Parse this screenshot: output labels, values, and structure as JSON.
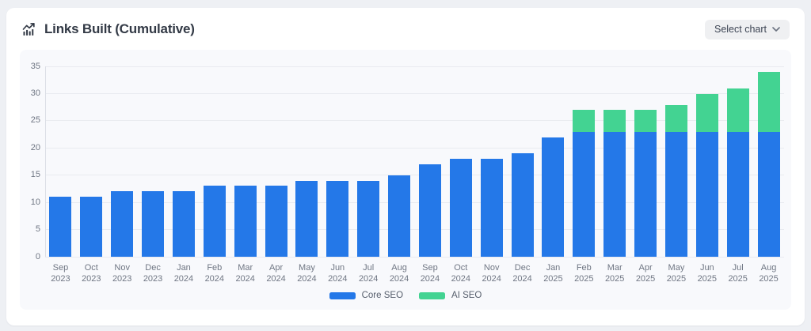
{
  "header": {
    "title": "Links Built (Cumulative)",
    "select_chart_label": "Select chart",
    "chevron_icon": "chevron-down"
  },
  "colors": {
    "core_seo": "#2478e8",
    "ai_seo": "#43d392",
    "page_background": "#eef0f4",
    "card_background": "#ffffff",
    "panel_background": "#f8f9fc",
    "gridline": "#e9ebf0",
    "axis_line": "#dcdfe6",
    "tick_text": "#6f7683",
    "title_text": "#333a46"
  },
  "chart_data": {
    "type": "bar",
    "stacked": true,
    "title": "Links Built (Cumulative)",
    "xlabel": "",
    "ylabel": "",
    "ylim": [
      0,
      35
    ],
    "yticks": [
      0,
      5,
      10,
      15,
      20,
      25,
      30,
      35
    ],
    "grid": true,
    "legend_position": "bottom",
    "categories": [
      "Sep 2023",
      "Oct 2023",
      "Nov 2023",
      "Dec 2023",
      "Jan 2024",
      "Feb 2024",
      "Mar 2024",
      "Apr 2024",
      "May 2024",
      "Jun 2024",
      "Jul 2024",
      "Aug 2024",
      "Sep 2024",
      "Oct 2024",
      "Nov 2024",
      "Dec 2024",
      "Jan 2025",
      "Feb 2025",
      "Mar 2025",
      "Apr 2025",
      "May 2025",
      "Jun 2025",
      "Jul 2025",
      "Aug 2025"
    ],
    "series": [
      {
        "name": "Core SEO",
        "color": "#2478e8",
        "values": [
          11,
          11,
          12,
          12,
          12,
          13,
          13,
          13,
          14,
          14,
          14,
          15,
          17,
          18,
          18,
          19,
          22,
          23,
          23,
          23,
          23,
          23,
          23,
          23
        ]
      },
      {
        "name": "AI SEO",
        "color": "#43d392",
        "values": [
          0,
          0,
          0,
          0,
          0,
          0,
          0,
          0,
          0,
          0,
          0,
          0,
          0,
          0,
          0,
          0,
          0,
          4,
          4,
          4,
          5,
          7,
          8,
          11
        ]
      }
    ],
    "totals": [
      11,
      11,
      12,
      12,
      12,
      13,
      13,
      13,
      14,
      14,
      14,
      15,
      17,
      18,
      18,
      19,
      22,
      27,
      27,
      27,
      28,
      30,
      31,
      34
    ]
  }
}
